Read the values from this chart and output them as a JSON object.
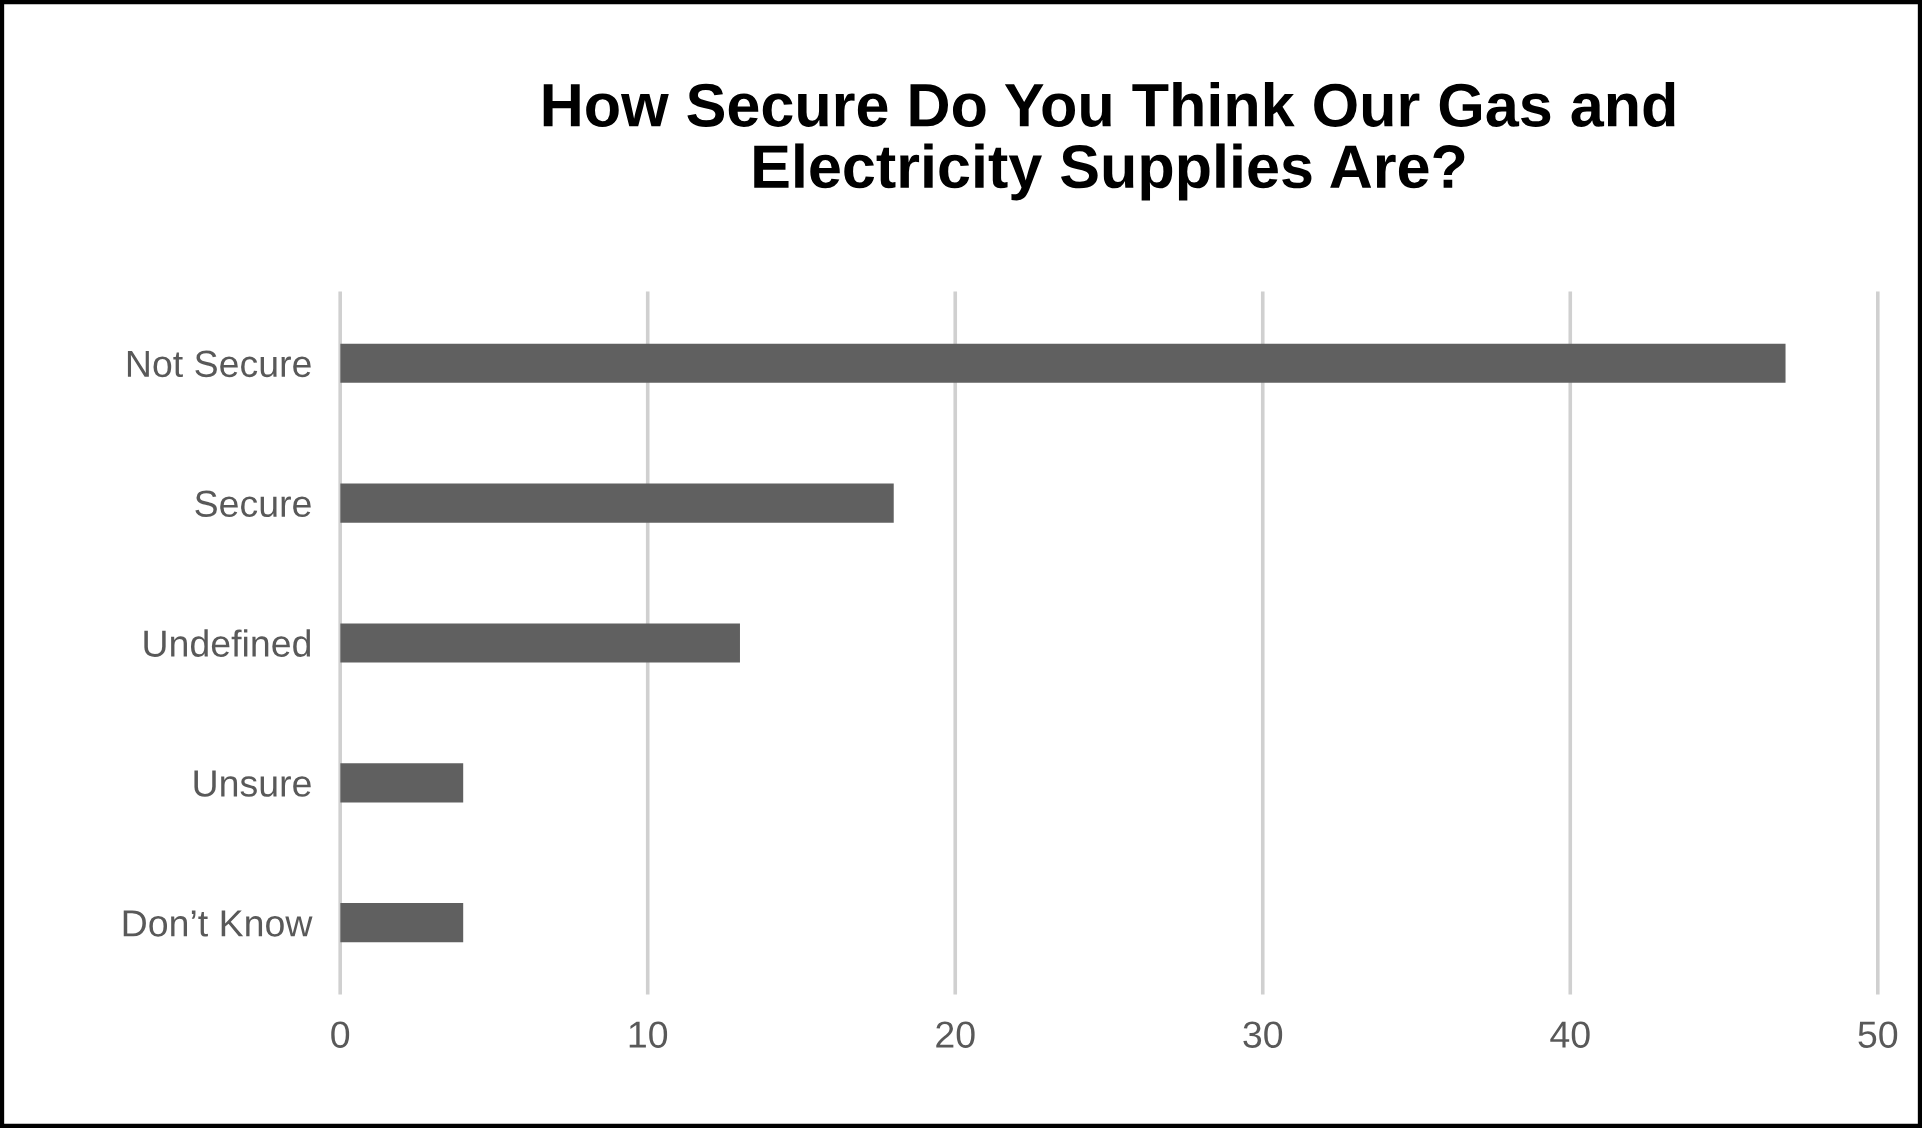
{
  "chart_data": {
    "type": "bar",
    "orientation": "horizontal",
    "title": "How Secure Do You Think Our Gas and\nElectricity Supplies Are?",
    "categories": [
      "Not Secure",
      "Secure",
      "Undefined",
      "Unsure",
      "Don’t Know"
    ],
    "values": [
      47,
      18,
      13,
      4,
      4
    ],
    "color": "#606060",
    "xlim": [
      0,
      50
    ],
    "xticks": [
      0,
      10,
      20,
      30,
      40,
      50
    ],
    "grid": "x"
  }
}
